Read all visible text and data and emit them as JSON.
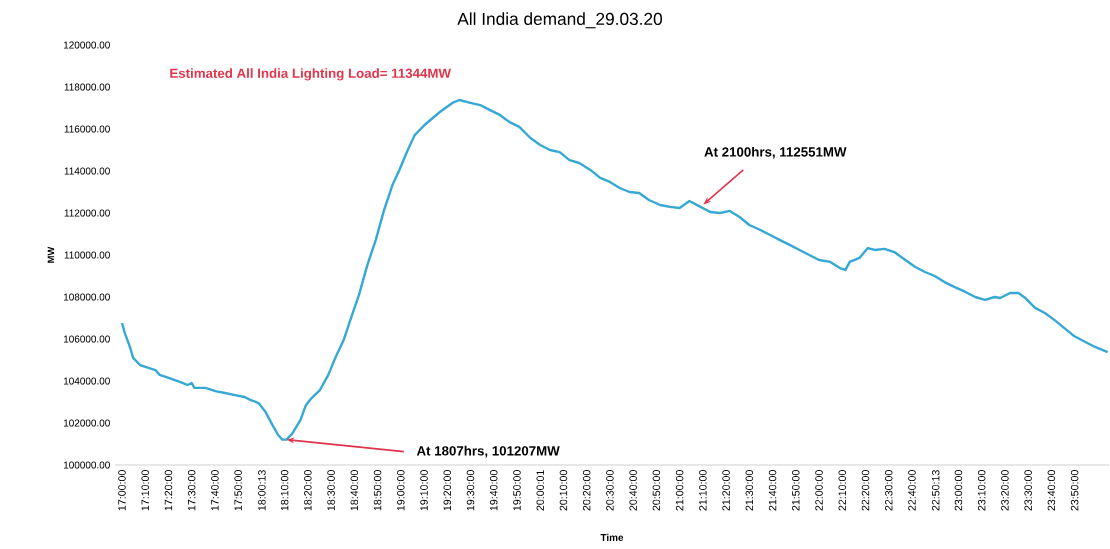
{
  "chart_data": {
    "type": "line",
    "title": "All India demand_29.03.20",
    "xlabel": "Time",
    "ylabel": "MW",
    "annotations": [
      "Estimated All India Lighting Load= 11344MW",
      {
        "text": "At 1807hrs, 101207MW",
        "x": 18.18,
        "y": 101207
      },
      {
        "text": "At 2100hrs, 112551MW",
        "x": 21.17,
        "y": 112400
      }
    ],
    "x": [
      17.0,
      17.02,
      17.06,
      17.08,
      17.13,
      17.19,
      17.24,
      17.27,
      17.34,
      17.42,
      17.47,
      17.5,
      17.52,
      17.6,
      17.67,
      17.74,
      17.81,
      17.88,
      17.92,
      17.98,
      18.03,
      18.08,
      18.12,
      18.15,
      18.18,
      18.22,
      18.28,
      18.32,
      18.36,
      18.42,
      18.48,
      18.53,
      18.59,
      18.65,
      18.7,
      18.76,
      18.82,
      18.88,
      18.94,
      18.99,
      19.05,
      19.1,
      19.17,
      19.28,
      19.37,
      19.42,
      19.5,
      19.57,
      19.64,
      19.71,
      19.78,
      19.85,
      19.93,
      20.0,
      20.07,
      20.14,
      20.21,
      20.28,
      20.36,
      20.43,
      20.5,
      20.57,
      20.64,
      20.71,
      20.78,
      20.86,
      20.93,
      21.0,
      21.07,
      21.15,
      21.22,
      21.29,
      21.36,
      21.43,
      21.5,
      21.58,
      21.65,
      21.72,
      21.79,
      21.86,
      21.93,
      22.0,
      22.08,
      22.15,
      22.19,
      22.22,
      22.29,
      22.35,
      22.4,
      22.47,
      22.54,
      22.62,
      22.69,
      22.76,
      22.83,
      22.9,
      22.97,
      23.05,
      23.12,
      23.19,
      23.26,
      23.3,
      23.37,
      23.43,
      23.48,
      23.55,
      23.62,
      23.69,
      23.76,
      23.83,
      23.91,
      23.98,
      24.07
    ],
    "series": [
      {
        "color": "#35a9d3",
        "values": [
          106760,
          106290,
          105570,
          105100,
          104760,
          104620,
          104520,
          104290,
          104140,
          103950,
          103810,
          103900,
          103670,
          103670,
          103520,
          103430,
          103330,
          103240,
          103100,
          102950,
          102520,
          101900,
          101430,
          101210,
          101210,
          101480,
          102140,
          102860,
          103190,
          103570,
          104290,
          105100,
          105950,
          107140,
          108100,
          109520,
          110710,
          112140,
          113330,
          114050,
          115000,
          115710,
          116190,
          116810,
          117240,
          117380,
          117240,
          117140,
          116900,
          116670,
          116330,
          116100,
          115570,
          115240,
          115000,
          114900,
          114520,
          114380,
          114050,
          113670,
          113480,
          113190,
          113000,
          112950,
          112620,
          112380,
          112290,
          112240,
          112570,
          112290,
          112050,
          112000,
          112100,
          111810,
          111430,
          111190,
          110950,
          110710,
          110480,
          110240,
          110000,
          109760,
          109670,
          109380,
          109290,
          109670,
          109860,
          110330,
          110240,
          110290,
          110140,
          109760,
          109430,
          109190,
          109000,
          108710,
          108480,
          108240,
          108000,
          107860,
          108000,
          107950,
          108190,
          108190,
          107950,
          107480,
          107240,
          106900,
          106520,
          106140,
          105860,
          105620,
          105380
        ]
      }
    ],
    "xlim": [
      16.95,
      24.08
    ],
    "ylim": [
      100000,
      120000
    ],
    "xticks": [
      {
        "value": 17.0,
        "label": "17:00:00"
      },
      {
        "value": 17.1667,
        "label": "17:10:00"
      },
      {
        "value": 17.3333,
        "label": "17:20:00"
      },
      {
        "value": 17.5,
        "label": "17:30:00"
      },
      {
        "value": 17.6667,
        "label": "17:40:00"
      },
      {
        "value": 17.8333,
        "label": "17:50:00"
      },
      {
        "value": 18.0036,
        "label": "18:00:13"
      },
      {
        "value": 18.1667,
        "label": "18:10:00"
      },
      {
        "value": 18.3333,
        "label": "18:20:00"
      },
      {
        "value": 18.5,
        "label": "18:30:00"
      },
      {
        "value": 18.6667,
        "label": "18:40:00"
      },
      {
        "value": 18.8333,
        "label": "18:50:00"
      },
      {
        "value": 19.0,
        "label": "19:00:00"
      },
      {
        "value": 19.1667,
        "label": "19:10:00"
      },
      {
        "value": 19.3333,
        "label": "19:20:00"
      },
      {
        "value": 19.5,
        "label": "19:30:00"
      },
      {
        "value": 19.6667,
        "label": "19:40:00"
      },
      {
        "value": 19.8333,
        "label": "19:50:00"
      },
      {
        "value": 20.0003,
        "label": "20:00:01"
      },
      {
        "value": 20.1667,
        "label": "20:10:00"
      },
      {
        "value": 20.3333,
        "label": "20:20:00"
      },
      {
        "value": 20.5,
        "label": "20:30:00"
      },
      {
        "value": 20.6667,
        "label": "20:40:00"
      },
      {
        "value": 20.8333,
        "label": "20:50:00"
      },
      {
        "value": 21.0,
        "label": "21:00:00"
      },
      {
        "value": 21.1667,
        "label": "21:10:00"
      },
      {
        "value": 21.3333,
        "label": "21:20:00"
      },
      {
        "value": 21.5,
        "label": "21:30:00"
      },
      {
        "value": 21.6667,
        "label": "21:40:00"
      },
      {
        "value": 21.8333,
        "label": "21:50:00"
      },
      {
        "value": 22.0,
        "label": "22:00:00"
      },
      {
        "value": 22.1667,
        "label": "22:10:00"
      },
      {
        "value": 22.3333,
        "label": "22:20:00"
      },
      {
        "value": 22.5,
        "label": "22:30:00"
      },
      {
        "value": 22.6667,
        "label": "22:40:00"
      },
      {
        "value": 22.8369,
        "label": "22:50:13"
      },
      {
        "value": 23.0,
        "label": "23:00:00"
      },
      {
        "value": 23.1667,
        "label": "23:10:00"
      },
      {
        "value": 23.3333,
        "label": "23:20:00"
      },
      {
        "value": 23.5,
        "label": "23:30:00"
      },
      {
        "value": 23.6667,
        "label": "23:40:00"
      },
      {
        "value": 23.8333,
        "label": "23:50:00"
      }
    ],
    "yticks": [
      {
        "value": 100000,
        "label": "100000.00"
      },
      {
        "value": 102000,
        "label": "102000.00"
      },
      {
        "value": 104000,
        "label": "104000.00"
      },
      {
        "value": 106000,
        "label": "106000.00"
      },
      {
        "value": 108000,
        "label": "108000.00"
      },
      {
        "value": 110000,
        "label": "110000.00"
      },
      {
        "value": 112000,
        "label": "112000.00"
      },
      {
        "value": 114000,
        "label": "114000.00"
      },
      {
        "value": 116000,
        "label": "116000.00"
      },
      {
        "value": 118000,
        "label": "118000.00"
      },
      {
        "value": 120000,
        "label": "120000.00"
      }
    ]
  }
}
